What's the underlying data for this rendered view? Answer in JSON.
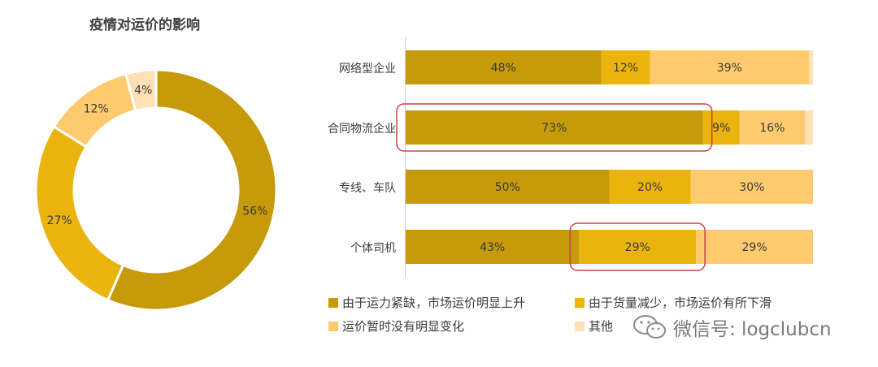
{
  "colors": {
    "c1": "#c69a0a",
    "c2": "#ebb30e",
    "c3": "#fdcb6e",
    "c4": "#fde0b4",
    "highlight": "#c8424a"
  },
  "chart_data": [
    {
      "type": "pie",
      "variant": "donut",
      "title": "疫情对运价的影响",
      "labels": [
        "由于运力紧缺，市场运价明显上升",
        "由于货量减少，市场运价有所下滑",
        "运价暂时没有明显变化",
        "其他"
      ],
      "values": [
        56,
        27,
        12,
        4
      ],
      "value_labels": [
        "56%",
        "27%",
        "12%",
        "4%"
      ]
    },
    {
      "type": "bar",
      "orientation": "horizontal",
      "stacked": true,
      "percent_stacked": true,
      "categories": [
        "网络型企业",
        "合同物流企业",
        "专线、车队",
        "个体司机"
      ],
      "series": [
        {
          "name": "由于运力紧缺，市场运价明显上升",
          "values": [
            48,
            73,
            50,
            43
          ],
          "labels": [
            "48%",
            "73%",
            "50%",
            "43%"
          ]
        },
        {
          "name": "由于货量减少，市场运价有所下滑",
          "values": [
            12,
            9,
            20,
            29
          ],
          "labels": [
            "12%",
            "9%",
            "20%",
            "29%"
          ]
        },
        {
          "name": "运价暂时没有明显变化",
          "values": [
            39,
            16,
            30,
            29
          ],
          "labels": [
            "39%",
            "16%",
            "30%",
            "29%"
          ]
        },
        {
          "name": "其他",
          "values": [
            1,
            2,
            0,
            0
          ],
          "labels": [
            "",
            "",
            "",
            ""
          ]
        }
      ],
      "highlights": [
        {
          "category": "合同物流企业",
          "series": "由于运力紧缺，市场运价明显上升"
        },
        {
          "category": "个体司机",
          "series": "由于货量减少，市场运价有所下滑"
        }
      ],
      "legend": {
        "position": "bottom"
      }
    }
  ],
  "watermark": {
    "icon": "wechat-icon",
    "text": "微信号: logclubcn"
  }
}
